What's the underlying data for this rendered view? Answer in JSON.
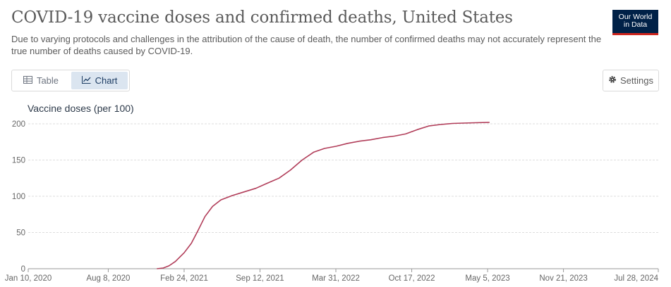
{
  "header": {
    "title": "COVID-19 vaccine doses and confirmed deaths, United States",
    "subtitle": "Due to varying protocols and challenges in the attribution of the cause of death, the number of confirmed deaths may not accurately represent the true number of deaths caused by COVID-19.",
    "logo_line1": "Our World",
    "logo_line2": "in Data"
  },
  "tabs": {
    "table_label": "Table",
    "chart_label": "Chart",
    "active": "chart"
  },
  "settings": {
    "label": "Settings",
    "icon": "gear-icon"
  },
  "colors": {
    "series": "#b13d59",
    "grid": "#dddddd",
    "active_tab_bg": "#dbe5f0",
    "logo_bg": "#002147",
    "logo_accent": "#ce261e"
  },
  "chart_data": {
    "type": "line",
    "title": "COVID-19 vaccine doses and confirmed deaths, United States",
    "ylabel": "Vaccine doses (per 100)",
    "xlabel": "",
    "ylim": [
      0,
      200
    ],
    "yticks": [
      0,
      50,
      100,
      150,
      200
    ],
    "xlim": [
      "2020-01-10",
      "2024-07-28"
    ],
    "xticks": [
      {
        "date": "2020-01-10",
        "label": "Jan 10, 2020"
      },
      {
        "date": "2020-08-08",
        "label": "Aug 8, 2020"
      },
      {
        "date": "2021-02-24",
        "label": "Feb 24, 2021"
      },
      {
        "date": "2021-09-12",
        "label": "Sep 12, 2021"
      },
      {
        "date": "2022-03-31",
        "label": "Mar 31, 2022"
      },
      {
        "date": "2022-10-17",
        "label": "Oct 17, 2022"
      },
      {
        "date": "2023-05-05",
        "label": "May 5, 2023"
      },
      {
        "date": "2023-11-21",
        "label": "Nov 21, 2023"
      },
      {
        "date": "2024-07-28",
        "label": "Jul 28, 2024"
      }
    ],
    "grid": true,
    "series": [
      {
        "x": [
          "2020-12-14",
          "2020-12-31",
          "2021-01-15",
          "2021-02-01",
          "2021-02-24",
          "2021-03-15",
          "2021-04-01",
          "2021-04-20",
          "2021-05-10",
          "2021-06-01",
          "2021-07-01",
          "2021-08-01",
          "2021-09-01",
          "2021-10-01",
          "2021-11-01",
          "2021-12-01",
          "2022-01-01",
          "2022-02-01",
          "2022-03-01",
          "2022-04-01",
          "2022-05-01",
          "2022-06-01",
          "2022-07-01",
          "2022-08-01",
          "2022-09-01",
          "2022-10-01",
          "2022-11-01",
          "2022-12-01",
          "2023-01-01",
          "2023-02-01",
          "2023-03-01",
          "2023-04-01",
          "2023-05-10"
        ],
        "y": [
          0,
          1,
          4,
          10,
          22,
          35,
          52,
          72,
          86,
          95,
          101,
          106,
          111,
          118,
          125,
          136,
          150,
          161,
          166,
          169,
          173,
          176,
          178,
          181,
          183,
          186,
          192,
          197,
          199,
          200.5,
          201,
          201.5,
          202
        ]
      }
    ]
  }
}
